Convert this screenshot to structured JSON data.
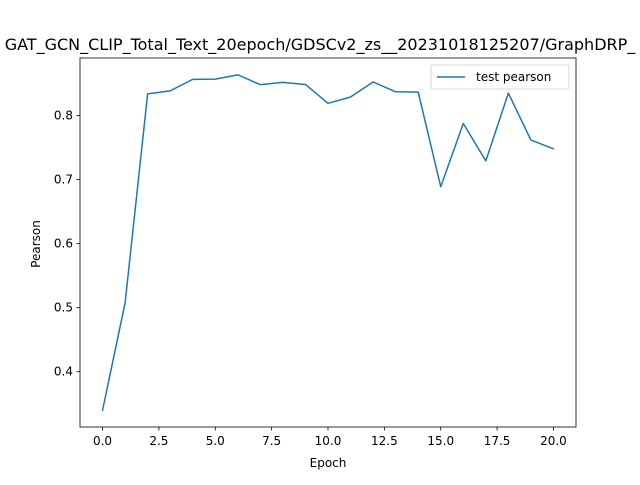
{
  "chart_data": {
    "type": "line",
    "title": "GAT_GCN_CLIP_Total_Text_20epoch/GDSCv2_zs__20231018125207/GraphDRP_",
    "xlabel": "Epoch",
    "ylabel": "Pearson",
    "xlim": [
      -1.0,
      21.0
    ],
    "ylim": [
      0.3137,
      0.8899
    ],
    "x_ticks": [
      0.0,
      2.5,
      5.0,
      7.5,
      10.0,
      12.5,
      15.0,
      17.5,
      20.0
    ],
    "x_tick_labels": [
      "0.0",
      "2.5",
      "5.0",
      "7.5",
      "10.0",
      "12.5",
      "15.0",
      "17.5",
      "20.0"
    ],
    "y_ticks": [
      0.4,
      0.5,
      0.6,
      0.7,
      0.8
    ],
    "y_tick_labels": [
      "0.4",
      "0.5",
      "0.6",
      "0.7",
      "0.8"
    ],
    "grid": false,
    "legend_position": "top-right",
    "series": [
      {
        "name": "test pearson",
        "color": "#1f77b4",
        "x": [
          0,
          1,
          2,
          3,
          4,
          5,
          6,
          7,
          8,
          9,
          10,
          11,
          12,
          13,
          14,
          15,
          16,
          17,
          18,
          19,
          20
        ],
        "y": [
          0.3399,
          0.5074,
          0.8339,
          0.8386,
          0.8565,
          0.8569,
          0.8636,
          0.8483,
          0.8518,
          0.8486,
          0.8191,
          0.829,
          0.8525,
          0.8371,
          0.8367,
          0.6889,
          0.7877,
          0.7293,
          0.8351,
          0.7617,
          0.7481
        ]
      }
    ]
  }
}
